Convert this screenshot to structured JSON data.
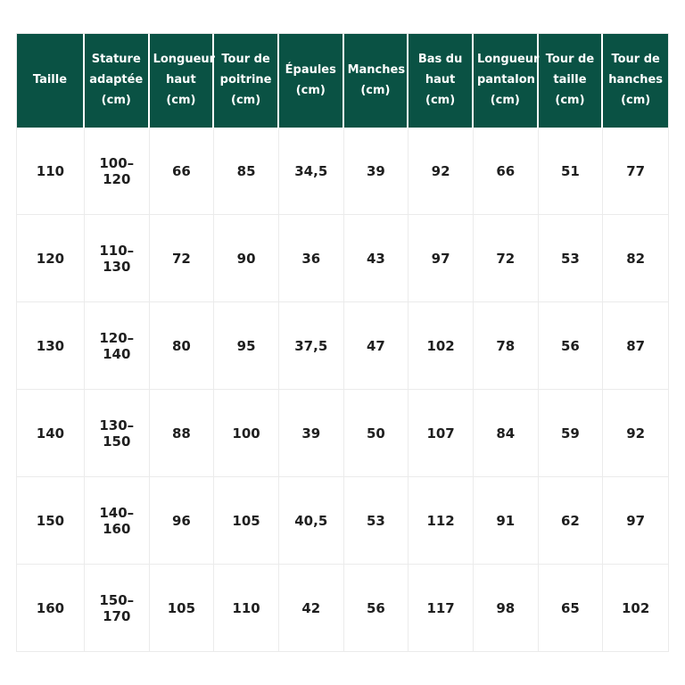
{
  "colors": {
    "header_bg": "#0a5244",
    "header_text": "#ffffff",
    "body_text": "#1f1f1f",
    "grid_line": "#ebebeb",
    "page_bg": "#ffffff"
  },
  "chart_data": {
    "type": "table",
    "title": "",
    "columns": [
      {
        "id": "taille",
        "label": "Taille"
      },
      {
        "id": "stature-adaptee",
        "label": "Stature\nadaptée\n(cm)"
      },
      {
        "id": "longueur-haut",
        "label": "Longueur\nhaut\n(cm)"
      },
      {
        "id": "tour-de-poitrine",
        "label": "Tour de\npoitrine\n(cm)"
      },
      {
        "id": "epaules",
        "label": "Épaules\n(cm)"
      },
      {
        "id": "manches",
        "label": "Manches\n(cm)"
      },
      {
        "id": "bas-du-haut",
        "label": "Bas du\nhaut\n(cm)"
      },
      {
        "id": "longueur-pantalon",
        "label": "Longueur\npantalon\n(cm)"
      },
      {
        "id": "tour-de-taille",
        "label": "Tour de\ntaille\n(cm)"
      },
      {
        "id": "tour-de-hanches",
        "label": "Tour de\nhanches\n(cm)"
      }
    ],
    "rows": [
      [
        "110",
        "100–120",
        "66",
        "85",
        "34,5",
        "39",
        "92",
        "66",
        "51",
        "77"
      ],
      [
        "120",
        "110–130",
        "72",
        "90",
        "36",
        "43",
        "97",
        "72",
        "53",
        "82"
      ],
      [
        "130",
        "120–140",
        "80",
        "95",
        "37,5",
        "47",
        "102",
        "78",
        "56",
        "87"
      ],
      [
        "140",
        "130–150",
        "88",
        "100",
        "39",
        "50",
        "107",
        "84",
        "59",
        "92"
      ],
      [
        "150",
        "140–160",
        "96",
        "105",
        "40,5",
        "53",
        "112",
        "91",
        "62",
        "97"
      ],
      [
        "160",
        "150–170",
        "105",
        "110",
        "42",
        "56",
        "117",
        "98",
        "65",
        "102"
      ]
    ]
  }
}
